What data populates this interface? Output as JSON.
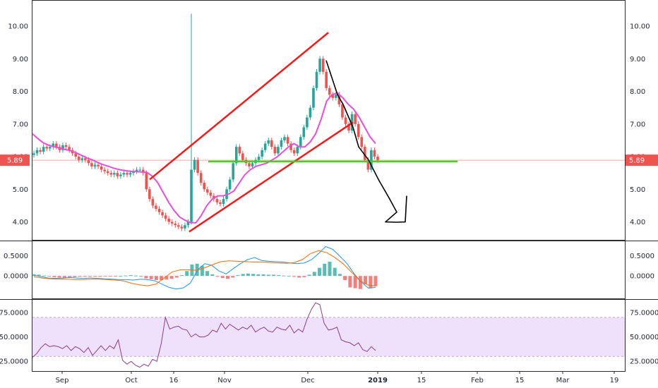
{
  "chart_data": [
    {
      "type": "candlestick",
      "panel": "price",
      "y_ticks": [
        "10.00",
        "9.00",
        "8.00",
        "7.00",
        "6.00",
        "5.00",
        "4.00"
      ],
      "y_tick_values": [
        10,
        9,
        8,
        7,
        6,
        5,
        4
      ],
      "ylim": [
        3.45,
        10.8
      ],
      "last_price_label": "5.89",
      "last_price": 5.89,
      "colors": {
        "up": "#26a69a",
        "down": "#ef5350",
        "ma": "#e84fd9",
        "channel": "#f21c1c",
        "support": "#33dd11",
        "drawing": "#000000",
        "price_line": "#f7a6a6",
        "badge": "#ef5350"
      },
      "candles_close": [
        6.1,
        6.2,
        6.15,
        6.3,
        6.25,
        6.3,
        6.4,
        6.3,
        6.2,
        6.35,
        6.3,
        6.2,
        6.1,
        6.0,
        5.9,
        5.95,
        5.9,
        5.8,
        5.7,
        5.75,
        5.7,
        5.6,
        5.55,
        5.5,
        5.45,
        5.5,
        5.4,
        5.45,
        5.5,
        5.45,
        5.5,
        5.55,
        5.6,
        5.6,
        5.5,
        5.0,
        4.7,
        4.5,
        4.4,
        4.3,
        4.2,
        4.1,
        4.0,
        3.95,
        3.9,
        3.85,
        3.8,
        3.9,
        4.0,
        5.6,
        5.9,
        5.5,
        5.2,
        5.0,
        4.9,
        4.8,
        4.7,
        4.6,
        4.55,
        4.7,
        5.0,
        5.3,
        5.8,
        6.3,
        6.1,
        5.9,
        5.8,
        5.7,
        5.8,
        5.9,
        6.0,
        6.2,
        6.4,
        6.5,
        6.3,
        6.1,
        6.3,
        6.5,
        6.6,
        6.4,
        6.2,
        6.1,
        6.3,
        6.6,
        6.9,
        7.2,
        7.5,
        8.1,
        8.6,
        9.0,
        8.6,
        8.1,
        7.9,
        7.8,
        7.9,
        7.6,
        7.2,
        7.0,
        6.8,
        7.3,
        7.0,
        6.6,
        6.3,
        5.9,
        5.6,
        6.2,
        6.0,
        5.89
      ],
      "ma_values": [
        6.7,
        6.55,
        6.42,
        6.35,
        6.3,
        6.26,
        6.22,
        6.18,
        6.12,
        6.04,
        5.96,
        5.9,
        5.82,
        5.75,
        5.7,
        5.64,
        5.6,
        5.57,
        5.55,
        5.54,
        5.53,
        5.52,
        5.4,
        5.2,
        4.9,
        4.6,
        4.35,
        4.15,
        4.05,
        3.98,
        3.97,
        4.2,
        4.5,
        4.7,
        4.8,
        4.8,
        4.85,
        4.95,
        5.2,
        5.45,
        5.6,
        5.7,
        5.75,
        5.8,
        5.9,
        6.0,
        6.15,
        6.3,
        6.4,
        6.3,
        6.3,
        6.45,
        6.7,
        7.15,
        7.7,
        7.9,
        7.95,
        7.8,
        7.6,
        7.45,
        7.2,
        6.9,
        6.6,
        6.4
      ],
      "channel_upper": {
        "x": [
          "Oct 05",
          "Dec 07"
        ],
        "y": [
          5.3,
          9.8
        ]
      },
      "channel_lower": {
        "x": [
          "Oct 16",
          "Dec 19"
        ],
        "y": [
          3.7,
          7.05
        ]
      },
      "support_level": 5.85,
      "projection": [
        [
          8.95,
          7.9,
          7.6,
          7.2,
          6.9,
          6.3,
          5.9,
          5.3,
          4.7,
          4.3,
          4.0,
          3.99,
          4.0,
          4.8
        ]
      ]
    },
    {
      "type": "line+bar",
      "panel": "macd",
      "y_ticks": [
        "0.5000",
        "0.0000"
      ],
      "y_tick_values": [
        0.5,
        0
      ],
      "ylim": [
        -0.55,
        0.85
      ],
      "histogram": [
        0.04,
        0.03,
        0.01,
        -0.01,
        -0.03,
        -0.04,
        -0.04,
        -0.03,
        -0.03,
        -0.02,
        -0.02,
        -0.02,
        -0.02,
        -0.02,
        -0.01,
        -0.01,
        -0.01,
        0.0,
        0.01,
        0.02,
        0.01,
        -0.02,
        -0.06,
        -0.08,
        -0.1,
        -0.1,
        -0.09,
        -0.07,
        -0.04,
        0.02,
        0.12,
        0.28,
        0.3,
        0.25,
        0.12,
        0.04,
        -0.02,
        -0.05,
        -0.07,
        -0.04,
        0.02,
        0.05,
        0.06,
        0.05,
        0.04,
        0.04,
        0.03,
        0.03,
        0.02,
        0.01,
        0.0,
        -0.02,
        -0.04,
        -0.03,
        0.03,
        0.1,
        0.2,
        0.3,
        0.35,
        0.2,
        0.05,
        -0.1,
        -0.28,
        -0.3,
        -0.32,
        -0.2,
        -0.3,
        -0.25
      ],
      "macd_line": [
        0.02,
        -0.02,
        -0.05,
        -0.06,
        -0.05,
        -0.04,
        -0.05,
        -0.06,
        -0.05,
        -0.06,
        -0.07,
        -0.08,
        -0.09,
        -0.09,
        -0.1,
        -0.08,
        -0.09,
        -0.12,
        -0.2,
        -0.28,
        -0.32,
        -0.29,
        -0.17,
        0.15,
        0.3,
        0.26,
        0.12,
        0.05,
        0.18,
        0.3,
        0.4,
        0.45,
        0.38,
        0.36,
        0.35,
        0.34,
        0.32,
        0.3,
        0.32,
        0.4,
        0.55,
        0.72,
        0.65,
        0.48,
        0.3,
        0.05,
        -0.15,
        -0.3,
        -0.28
      ],
      "signal_line": [
        -0.02,
        -0.05,
        -0.07,
        -0.08,
        -0.08,
        -0.09,
        -0.09,
        -0.08,
        -0.08,
        -0.09,
        -0.1,
        -0.12,
        -0.18,
        -0.22,
        -0.24,
        -0.2,
        -0.05,
        0.1,
        0.15,
        0.15,
        0.14,
        0.2,
        0.28,
        0.35,
        0.37,
        0.36,
        0.35,
        0.34,
        0.34,
        0.33,
        0.32,
        0.31,
        0.33,
        0.4,
        0.55,
        0.62,
        0.57,
        0.45,
        0.3,
        0.1,
        -0.1,
        -0.22,
        -0.25
      ]
    },
    {
      "type": "line",
      "panel": "rsi",
      "y_ticks": [
        "75.0000",
        "50.0000",
        "25.0000"
      ],
      "y_tick_values": [
        75,
        50,
        25
      ],
      "ylim": [
        15,
        88
      ],
      "band": [
        30,
        70
      ],
      "rsi_values": [
        29,
        33,
        39,
        43,
        40,
        41,
        40,
        38,
        41,
        36,
        40,
        38,
        34,
        39,
        31,
        36,
        41,
        36,
        41,
        38,
        47,
        26,
        22,
        25,
        21,
        19,
        22,
        20,
        27,
        25,
        43,
        70,
        58,
        60,
        61,
        58,
        57,
        50,
        53,
        50,
        50,
        52,
        57,
        55,
        64,
        58,
        63,
        60,
        57,
        60,
        58,
        62,
        55,
        58,
        60,
        56,
        55,
        60,
        58,
        57,
        62,
        54,
        58,
        55,
        68,
        78,
        85,
        83,
        64,
        57,
        58,
        60,
        47,
        45,
        44,
        41,
        44,
        37,
        35,
        40,
        36
      ]
    }
  ],
  "x_axis": {
    "labels": [
      "Sep",
      "Oct",
      "16",
      "Nov",
      "Dec",
      "2019",
      "15",
      "Feb",
      "15",
      "Mar",
      "19"
    ],
    "bold": [
      false,
      false,
      false,
      false,
      false,
      true,
      false,
      false,
      false,
      false,
      false
    ]
  }
}
